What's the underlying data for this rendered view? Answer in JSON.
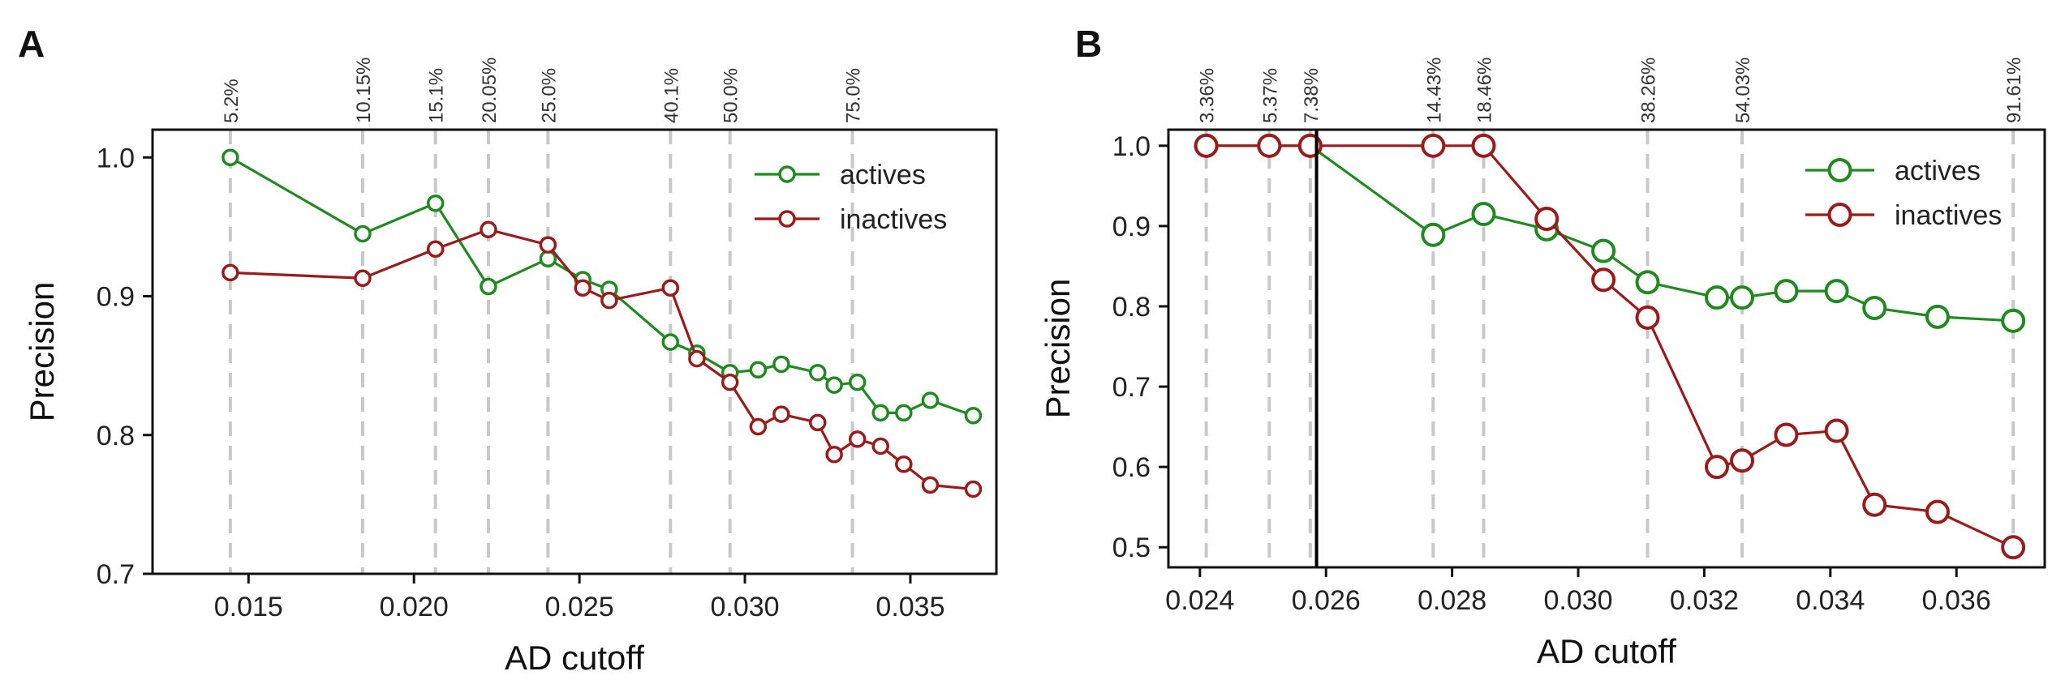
{
  "chart_data": [
    {
      "type": "line",
      "panel": "A",
      "xlabel": "AD cutoff",
      "ylabel": "Precision",
      "xlim": [
        0.0121,
        0.0376
      ],
      "ylim": [
        0.7,
        1.02
      ],
      "xticks": [
        0.015,
        0.02,
        0.025,
        0.03,
        0.035
      ],
      "xtick_labels": [
        "0.015",
        "0.020",
        "0.025",
        "0.030",
        "0.035"
      ],
      "yticks": [
        0.7,
        0.8,
        0.9,
        1.0
      ],
      "ytick_labels": [
        "0.7",
        "0.8",
        "0.9",
        "1.0"
      ],
      "cutoff_lines": [
        {
          "x": 0.01445,
          "label": "5.2%"
        },
        {
          "x": 0.01845,
          "label": "10.15%"
        },
        {
          "x": 0.02065,
          "label": "15.1%"
        },
        {
          "x": 0.02225,
          "label": "20.05%"
        },
        {
          "x": 0.02405,
          "label": "25.0%"
        },
        {
          "x": 0.02775,
          "label": "40.1%"
        },
        {
          "x": 0.02955,
          "label": "50.0%"
        },
        {
          "x": 0.03325,
          "label": "75.0%"
        }
      ],
      "legend": {
        "position": "top-right"
      },
      "series": [
        {
          "name": "actives",
          "color": "#1f8a1f",
          "x": [
            0.01445,
            0.01845,
            0.02065,
            0.02225,
            0.02405,
            0.0251,
            0.0259,
            0.02775,
            0.02855,
            0.02955,
            0.0304,
            0.0311,
            0.0322,
            0.0327,
            0.0334,
            0.0341,
            0.0348,
            0.0356,
            0.0369
          ],
          "y": [
            1.0,
            0.945,
            0.967,
            0.907,
            0.927,
            0.912,
            0.905,
            0.867,
            0.859,
            0.845,
            0.847,
            0.851,
            0.845,
            0.836,
            0.838,
            0.816,
            0.816,
            0.825,
            0.814
          ]
        },
        {
          "name": "inactives",
          "color": "#9b1b1b",
          "x": [
            0.01445,
            0.01845,
            0.02065,
            0.02225,
            0.02405,
            0.0251,
            0.0259,
            0.02775,
            0.02855,
            0.02955,
            0.0304,
            0.0311,
            0.0322,
            0.0327,
            0.0334,
            0.0341,
            0.0348,
            0.0356,
            0.0369
          ],
          "y": [
            0.917,
            0.913,
            0.934,
            0.948,
            0.937,
            0.906,
            0.897,
            0.906,
            0.855,
            0.838,
            0.806,
            0.815,
            0.809,
            0.786,
            0.797,
            0.792,
            0.779,
            0.764,
            0.761
          ]
        }
      ]
    },
    {
      "type": "line",
      "panel": "B",
      "xlabel": "AD cutoff",
      "ylabel": "Precision",
      "xlim": [
        0.0235,
        0.0374
      ],
      "ylim": [
        0.475,
        1.02
      ],
      "xticks": [
        0.024,
        0.026,
        0.028,
        0.03,
        0.032,
        0.034,
        0.036
      ],
      "xtick_labels": [
        "0.024",
        "0.026",
        "0.028",
        "0.030",
        "0.032",
        "0.034",
        "0.036"
      ],
      "yticks": [
        0.5,
        0.6,
        0.7,
        0.8,
        0.9,
        1.0
      ],
      "ytick_labels": [
        "0.5",
        "0.6",
        "0.7",
        "0.8",
        "0.9",
        "1.0"
      ],
      "cutoff_lines": [
        {
          "x": 0.0241,
          "label": "3.36%"
        },
        {
          "x": 0.0251,
          "label": "5.37%"
        },
        {
          "x": 0.02575,
          "label": "7.38%"
        },
        {
          "x": 0.0277,
          "label": "14.43%"
        },
        {
          "x": 0.0285,
          "label": "18.46%"
        },
        {
          "x": 0.0311,
          "label": "38.26%"
        },
        {
          "x": 0.0326,
          "label": "54.03%"
        },
        {
          "x": 0.0369,
          "label": "91.61%"
        }
      ],
      "highlight_line_x": 0.02585,
      "legend": {
        "position": "top-right"
      },
      "series": [
        {
          "name": "actives",
          "color": "#1f8a1f",
          "x": [
            0.0241,
            0.0251,
            0.02575,
            0.0277,
            0.0285,
            0.0295,
            0.0304,
            0.0311,
            0.0322,
            0.0326,
            0.0333,
            0.0341,
            0.0347,
            0.0357,
            0.0369
          ],
          "y": [
            1.0,
            1.0,
            1.0,
            0.889,
            0.915,
            0.896,
            0.869,
            0.83,
            0.811,
            0.811,
            0.819,
            0.819,
            0.798,
            0.787,
            0.782
          ]
        },
        {
          "name": "inactives",
          "color": "#9b1b1b",
          "x": [
            0.0241,
            0.0251,
            0.02575,
            0.0277,
            0.0285,
            0.0295,
            0.0304,
            0.0311,
            0.0322,
            0.0326,
            0.0333,
            0.0341,
            0.0347,
            0.0357,
            0.0369
          ],
          "y": [
            1.0,
            1.0,
            1.0,
            1.0,
            1.0,
            0.909,
            0.833,
            0.786,
            0.6,
            0.608,
            0.64,
            0.645,
            0.553,
            0.544,
            0.5
          ]
        }
      ]
    }
  ]
}
